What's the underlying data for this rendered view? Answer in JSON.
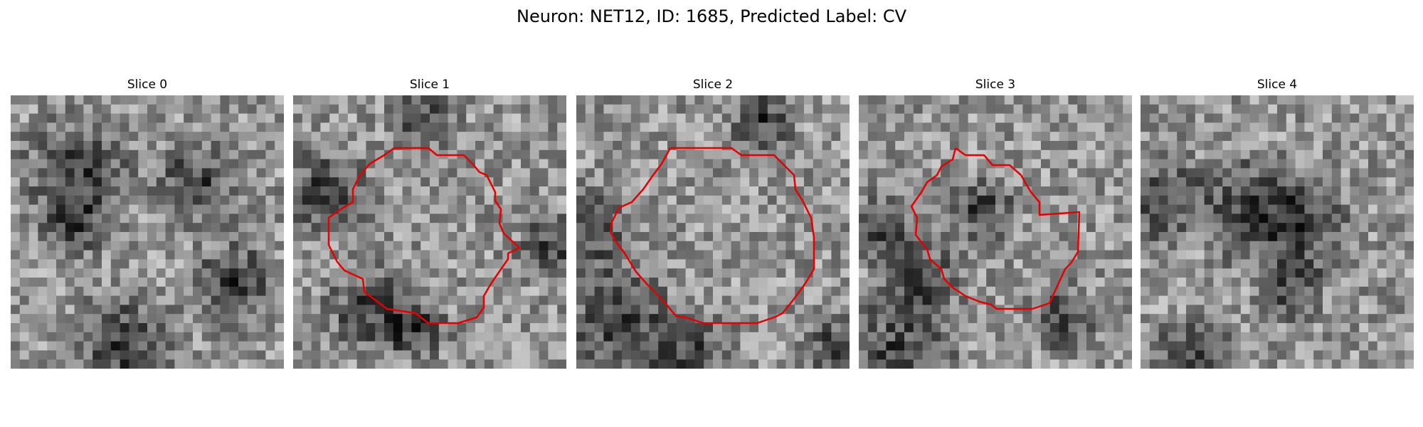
{
  "figure": {
    "title": "Neuron: NET12, ID: 1685, Predicted Label: CV",
    "contour_color": "#e60000"
  },
  "slices": [
    {
      "title": "Slice 0",
      "has_contour": false,
      "seed": 11
    },
    {
      "title": "Slice 1",
      "has_contour": true,
      "seed": 23
    },
    {
      "title": "Slice 2",
      "has_contour": true,
      "seed": 37
    },
    {
      "title": "Slice 3",
      "has_contour": true,
      "seed": 53
    },
    {
      "title": "Slice 4",
      "has_contour": false,
      "seed": 71
    }
  ]
}
